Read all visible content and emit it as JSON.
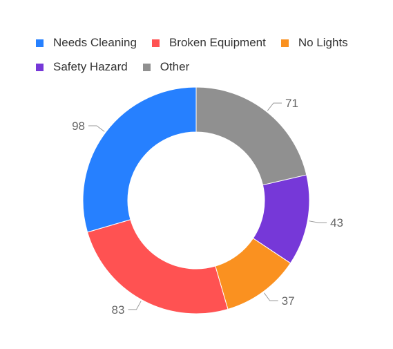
{
  "chart_data": {
    "type": "pie",
    "subtype": "donut",
    "categories": [
      "Needs Cleaning",
      "Broken Equipment",
      "No Lights",
      "Safety Hazard",
      "Other"
    ],
    "values": [
      98,
      83,
      37,
      43,
      71
    ],
    "colors": [
      "#2680FF",
      "#FF5252",
      "#FA9120",
      "#7638D8",
      "#909090"
    ],
    "legend_position": "top-left",
    "data_labels": true,
    "title": ""
  }
}
